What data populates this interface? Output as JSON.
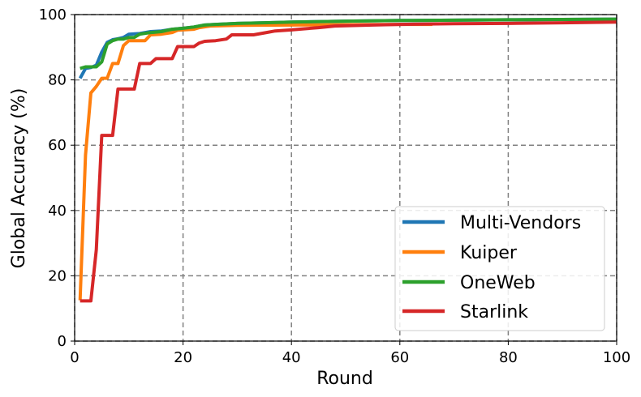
{
  "chart_data": {
    "type": "line",
    "xlabel": "Round",
    "ylabel": "Global Accuracy (%)",
    "xlim": [
      0,
      100
    ],
    "ylim": [
      0,
      100
    ],
    "x_ticks": [
      "0",
      "20",
      "40",
      "60",
      "80",
      "100"
    ],
    "y_ticks": [
      "0",
      "20",
      "40",
      "60",
      "80",
      "100"
    ],
    "grid": true,
    "grid_style": "dashed",
    "legend_position": "lower-right",
    "series": [
      {
        "name": "Multi-Vendors",
        "color": "#1f77b4",
        "points": [
          [
            1,
            80.5
          ],
          [
            2,
            83.5
          ],
          [
            3,
            83.8
          ],
          [
            4,
            84.5
          ],
          [
            5,
            88.5
          ],
          [
            6,
            91.5
          ],
          [
            7,
            92.3
          ],
          [
            8,
            92.6
          ],
          [
            9,
            93
          ],
          [
            10,
            94
          ],
          [
            12,
            94.2
          ],
          [
            14,
            94.8
          ],
          [
            16,
            95
          ],
          [
            18,
            95.5
          ],
          [
            20,
            95.8
          ],
          [
            22,
            96.2
          ],
          [
            24,
            96.8
          ],
          [
            26,
            97
          ],
          [
            30,
            97.3
          ],
          [
            35,
            97.5
          ],
          [
            40,
            97.7
          ],
          [
            50,
            98
          ],
          [
            60,
            98.2
          ],
          [
            70,
            98.3
          ],
          [
            80,
            98.4
          ],
          [
            90,
            98.5
          ],
          [
            100,
            98.6
          ]
        ]
      },
      {
        "name": "Kuiper",
        "color": "#ff7f0e",
        "points": [
          [
            1,
            12.5
          ],
          [
            2,
            57
          ],
          [
            3,
            76
          ],
          [
            4,
            78
          ],
          [
            5,
            80.5
          ],
          [
            6,
            80.5
          ],
          [
            7,
            85
          ],
          [
            8,
            85
          ],
          [
            9,
            90.5
          ],
          [
            10,
            92
          ],
          [
            12,
            92
          ],
          [
            13,
            92
          ],
          [
            14,
            93.8
          ],
          [
            16,
            94
          ],
          [
            18,
            94.5
          ],
          [
            19,
            95.2
          ],
          [
            22,
            95.5
          ],
          [
            23,
            96
          ],
          [
            25,
            96.5
          ],
          [
            30,
            96.7
          ],
          [
            40,
            96.8
          ],
          [
            50,
            96.9
          ],
          [
            60,
            97
          ],
          [
            66,
            97
          ]
        ]
      },
      {
        "name": "OneWeb",
        "color": "#2ca02c",
        "points": [
          [
            1,
            83.5
          ],
          [
            2,
            84
          ],
          [
            3,
            84
          ],
          [
            4,
            84
          ],
          [
            5,
            85.5
          ],
          [
            6,
            91
          ],
          [
            7,
            92
          ],
          [
            8,
            92.5
          ],
          [
            9,
            92.5
          ],
          [
            10,
            93
          ],
          [
            11,
            93
          ],
          [
            12,
            94
          ],
          [
            14,
            94.5
          ],
          [
            16,
            94.8
          ],
          [
            18,
            95.5
          ],
          [
            20,
            95.8
          ],
          [
            22,
            96.2
          ],
          [
            24,
            96.8
          ],
          [
            26,
            97
          ],
          [
            30,
            97.3
          ],
          [
            35,
            97.5
          ],
          [
            40,
            97.7
          ],
          [
            50,
            98
          ],
          [
            60,
            98.2
          ],
          [
            70,
            98.3
          ],
          [
            80,
            98.4
          ],
          [
            90,
            98.5
          ],
          [
            100,
            98.6
          ]
        ]
      },
      {
        "name": "Starlink",
        "color": "#d62728",
        "points": [
          [
            1,
            12.3
          ],
          [
            2,
            12.3
          ],
          [
            3,
            12.3
          ],
          [
            4,
            28
          ],
          [
            5,
            63
          ],
          [
            6,
            63
          ],
          [
            7,
            63
          ],
          [
            8,
            77.2
          ],
          [
            9,
            77.2
          ],
          [
            10,
            77.2
          ],
          [
            11,
            77.2
          ],
          [
            12,
            85
          ],
          [
            13,
            85
          ],
          [
            14,
            85
          ],
          [
            15,
            86.5
          ],
          [
            16,
            86.5
          ],
          [
            17,
            86.5
          ],
          [
            18,
            86.5
          ],
          [
            19,
            90.2
          ],
          [
            20,
            90.2
          ],
          [
            21,
            90.2
          ],
          [
            22,
            90.2
          ],
          [
            23,
            91.3
          ],
          [
            24,
            91.8
          ],
          [
            26,
            92
          ],
          [
            28,
            92.5
          ],
          [
            29,
            93.8
          ],
          [
            30,
            93.8
          ],
          [
            33,
            93.8
          ],
          [
            35,
            94.4
          ],
          [
            37,
            95
          ],
          [
            40,
            95.3
          ],
          [
            42,
            95.6
          ],
          [
            45,
            96
          ],
          [
            48,
            96.5
          ],
          [
            55,
            96.8
          ],
          [
            60,
            97
          ],
          [
            70,
            97.2
          ],
          [
            80,
            97.3
          ],
          [
            90,
            97.5
          ],
          [
            100,
            97.7
          ]
        ]
      }
    ]
  }
}
